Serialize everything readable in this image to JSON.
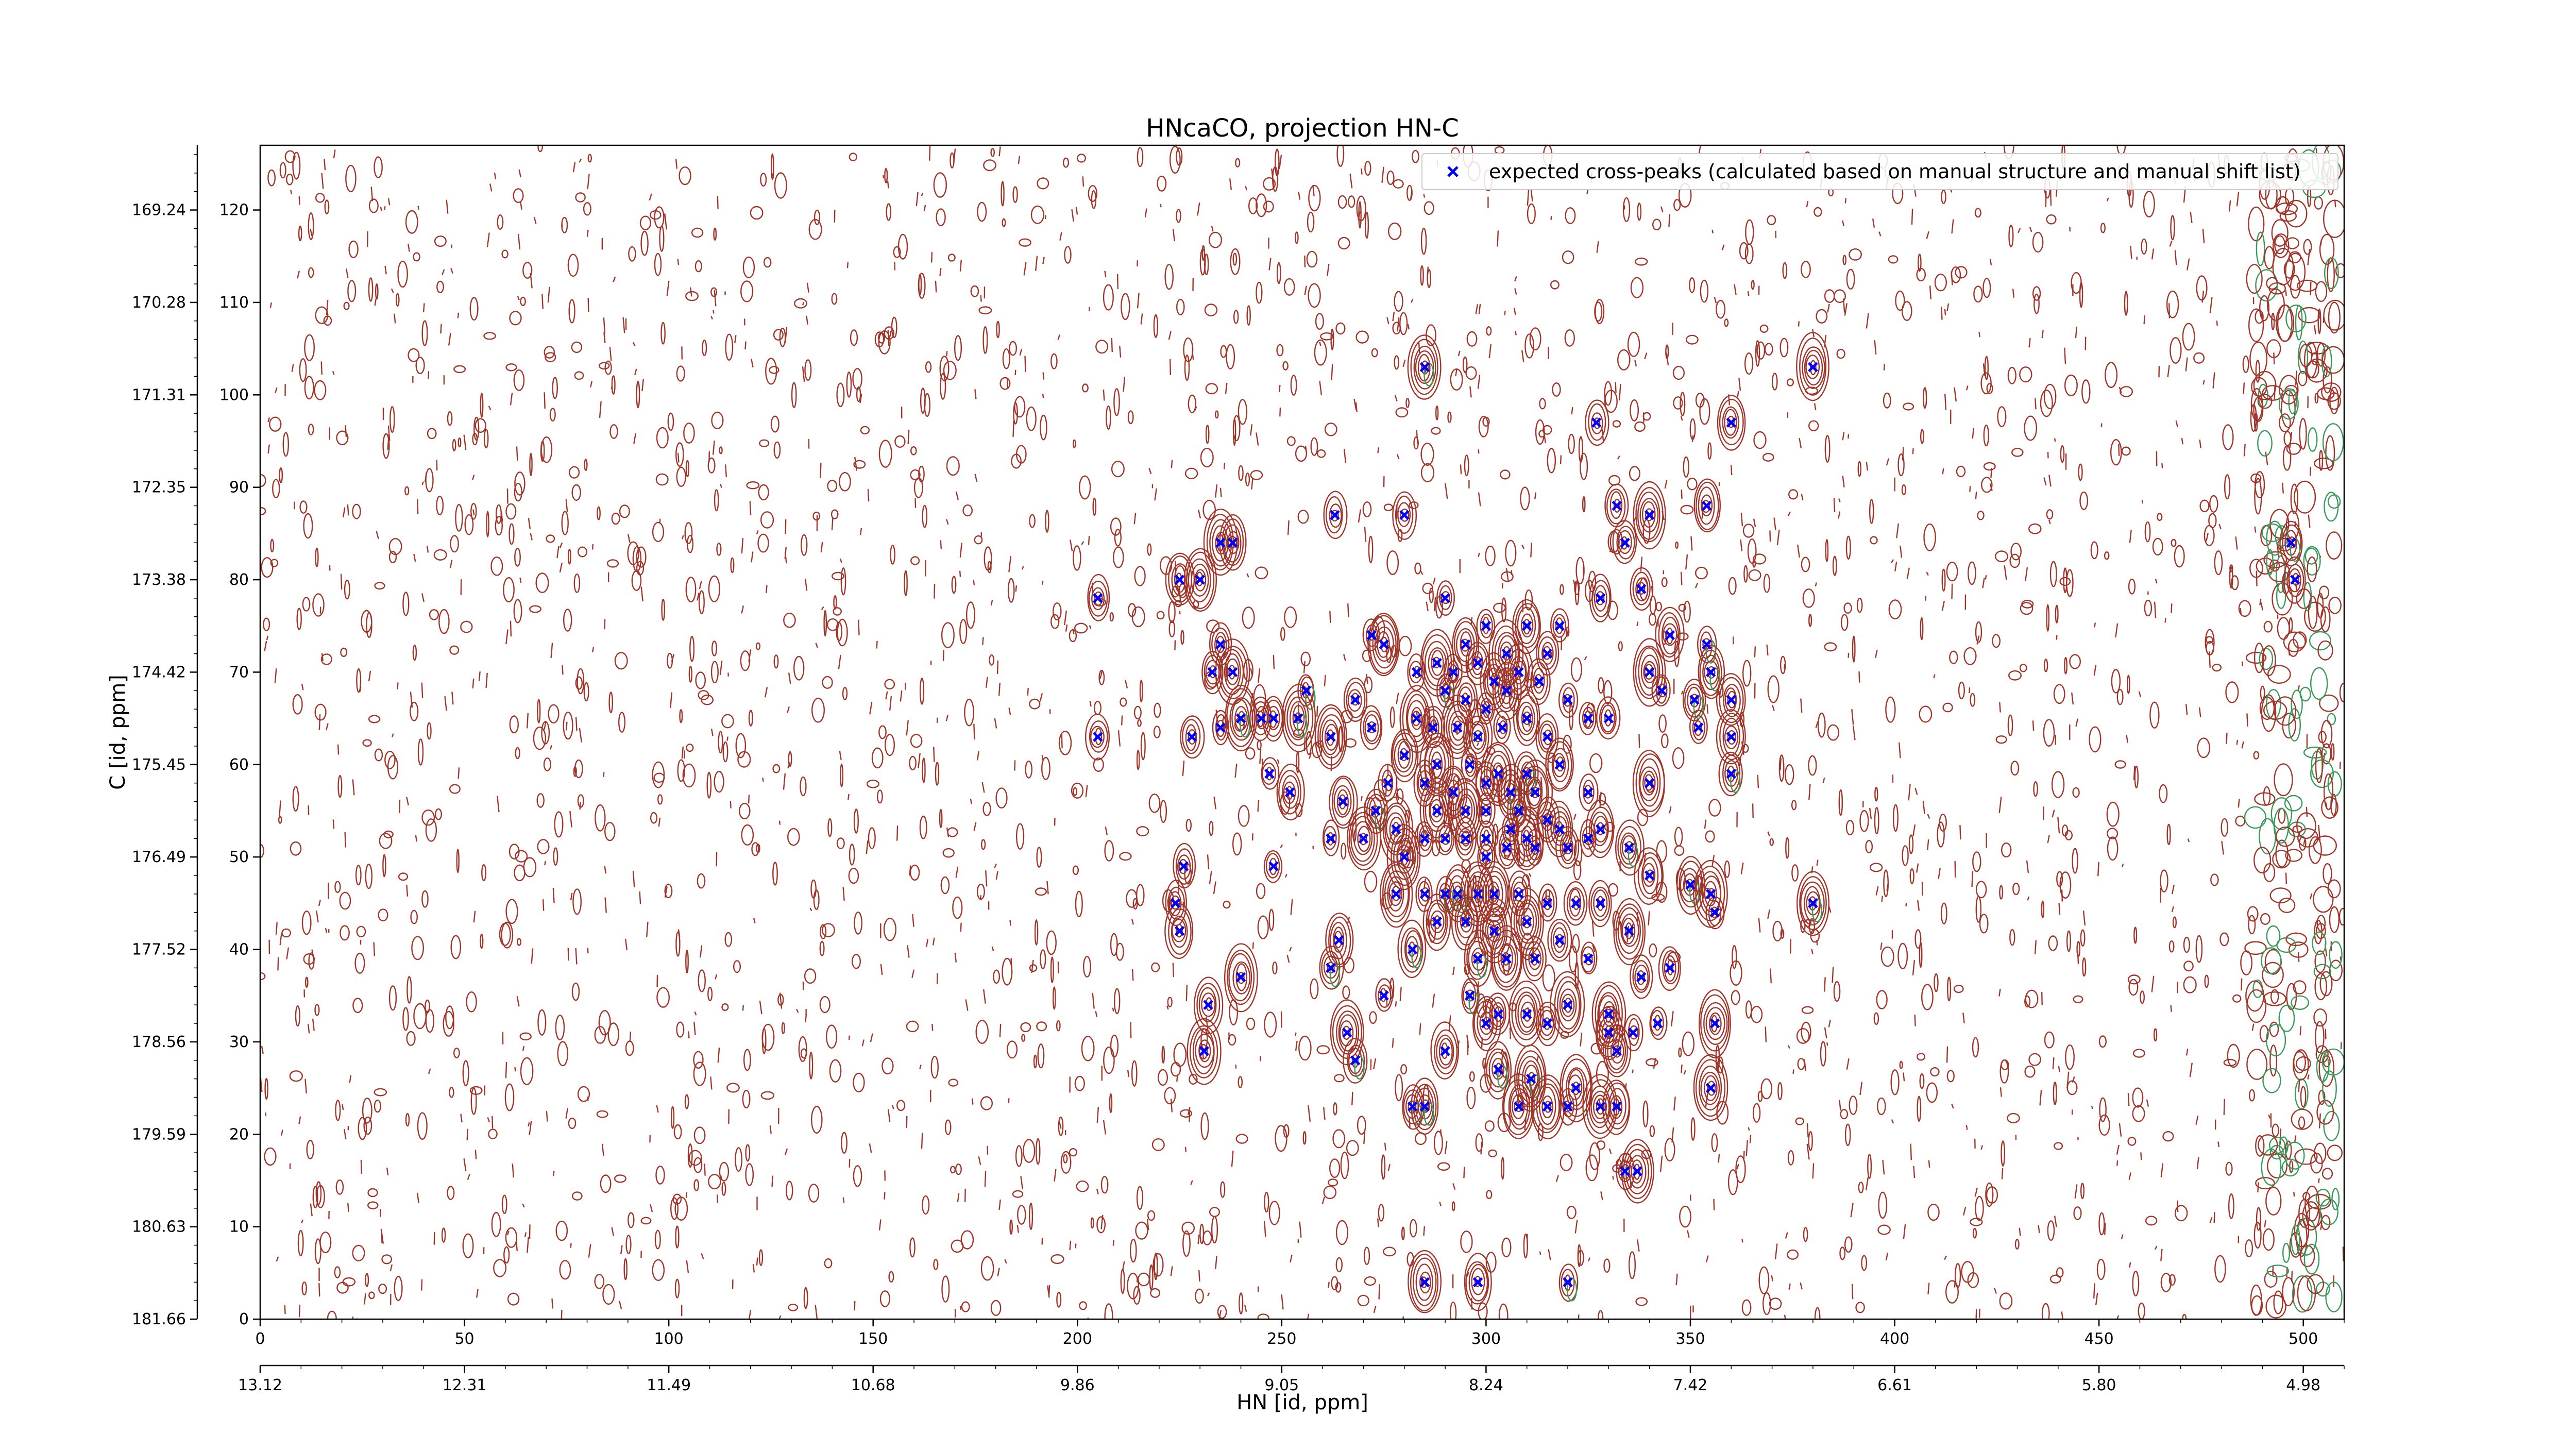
{
  "chart_data": {
    "type": "scatter",
    "title": "HNcaCO, projection HN-C",
    "xlabel": "HN [id, ppm]",
    "ylabel": "C [id, ppm]",
    "x_index_range": [
      0,
      510
    ],
    "y_index_range": [
      0,
      127
    ],
    "x_index_ticks": [
      "0",
      "50",
      "100",
      "150",
      "200",
      "250",
      "300",
      "350",
      "400",
      "450",
      "500"
    ],
    "x_ppm_ticks": [
      "13.12",
      "12.31",
      "11.49",
      "10.68",
      "9.86",
      "9.05",
      "8.24",
      "7.42",
      "6.61",
      "5.80",
      "4.98"
    ],
    "y_index_ticks": [
      "0",
      "10",
      "20",
      "30",
      "40",
      "50",
      "60",
      "70",
      "80",
      "90",
      "100",
      "110",
      "120"
    ],
    "y_ppm_ticks": [
      "181.66",
      "180.63",
      "179.59",
      "178.56",
      "177.52",
      "176.49",
      "175.45",
      "174.42",
      "173.38",
      "172.35",
      "171.31",
      "170.28",
      "169.24"
    ],
    "grid": false,
    "legend_position": "upper right",
    "colors": {
      "positive_contours": "#a0352a",
      "negative_contours": "#3a9a5a",
      "peaks": "#0000ff"
    },
    "series": [
      {
        "name": "expected cross-peaks (calculated based on manual structure and manual shift list)",
        "marker": "x",
        "color": "#0000ff",
        "points": [
          [
            285,
            103
          ],
          [
            380,
            103
          ],
          [
            327,
            97
          ],
          [
            360,
            97
          ],
          [
            354,
            88
          ],
          [
            332,
            88
          ],
          [
            263,
            87
          ],
          [
            280,
            87
          ],
          [
            340,
            87
          ],
          [
            235,
            84
          ],
          [
            238,
            84
          ],
          [
            334,
            84
          ],
          [
            225,
            80
          ],
          [
            230,
            80
          ],
          [
            205,
            78
          ],
          [
            338,
            79
          ],
          [
            290,
            78
          ],
          [
            328,
            78
          ],
          [
            272,
            74
          ],
          [
            275,
            73
          ],
          [
            295,
            73
          ],
          [
            300,
            75
          ],
          [
            305,
            72
          ],
          [
            310,
            75
          ],
          [
            288,
            71
          ],
          [
            298,
            71
          ],
          [
            315,
            72
          ],
          [
            318,
            75
          ],
          [
            345,
            74
          ],
          [
            235,
            73
          ],
          [
            354,
            73
          ],
          [
            233,
            70
          ],
          [
            238,
            70
          ],
          [
            283,
            70
          ],
          [
            292,
            70
          ],
          [
            302,
            69
          ],
          [
            308,
            70
          ],
          [
            313,
            69
          ],
          [
            320,
            67
          ],
          [
            340,
            70
          ],
          [
            355,
            70
          ],
          [
            343,
            68
          ],
          [
            256,
            68
          ],
          [
            268,
            67
          ],
          [
            290,
            68
          ],
          [
            295,
            67
          ],
          [
            300,
            66
          ],
          [
            305,
            68
          ],
          [
            351,
            67
          ],
          [
            360,
            67
          ],
          [
            205,
            63
          ],
          [
            228,
            63
          ],
          [
            235,
            64
          ],
          [
            240,
            65
          ],
          [
            245,
            65
          ],
          [
            248,
            65
          ],
          [
            254,
            65
          ],
          [
            262,
            63
          ],
          [
            272,
            64
          ],
          [
            283,
            65
          ],
          [
            287,
            64
          ],
          [
            293,
            64
          ],
          [
            298,
            63
          ],
          [
            304,
            64
          ],
          [
            310,
            65
          ],
          [
            315,
            63
          ],
          [
            325,
            65
          ],
          [
            330,
            65
          ],
          [
            352,
            64
          ],
          [
            360,
            63
          ],
          [
            280,
            61
          ],
          [
            288,
            60
          ],
          [
            296,
            60
          ],
          [
            303,
            59
          ],
          [
            310,
            59
          ],
          [
            318,
            60
          ],
          [
            247,
            59
          ],
          [
            276,
            58
          ],
          [
            285,
            58
          ],
          [
            292,
            57
          ],
          [
            300,
            58
          ],
          [
            306,
            57
          ],
          [
            312,
            57
          ],
          [
            325,
            57
          ],
          [
            340,
            58
          ],
          [
            360,
            59
          ],
          [
            252,
            57
          ],
          [
            265,
            56
          ],
          [
            273,
            55
          ],
          [
            288,
            55
          ],
          [
            295,
            55
          ],
          [
            300,
            55
          ],
          [
            308,
            55
          ],
          [
            315,
            54
          ],
          [
            278,
            53
          ],
          [
            285,
            52
          ],
          [
            290,
            52
          ],
          [
            295,
            52
          ],
          [
            300,
            52
          ],
          [
            306,
            53
          ],
          [
            310,
            52
          ],
          [
            318,
            53
          ],
          [
            325,
            52
          ],
          [
            328,
            53
          ],
          [
            262,
            52
          ],
          [
            270,
            52
          ],
          [
            280,
            50
          ],
          [
            300,
            50
          ],
          [
            305,
            51
          ],
          [
            312,
            51
          ],
          [
            320,
            51
          ],
          [
            335,
            51
          ],
          [
            340,
            48
          ],
          [
            350,
            47
          ],
          [
            226,
            49
          ],
          [
            248,
            49
          ],
          [
            278,
            46
          ],
          [
            285,
            46
          ],
          [
            290,
            46
          ],
          [
            293,
            46
          ],
          [
            298,
            46
          ],
          [
            302,
            46
          ],
          [
            308,
            46
          ],
          [
            315,
            45
          ],
          [
            322,
            45
          ],
          [
            328,
            45
          ],
          [
            355,
            46
          ],
          [
            380,
            45
          ],
          [
            224,
            45
          ],
          [
            225,
            42
          ],
          [
            356,
            44
          ],
          [
            288,
            43
          ],
          [
            295,
            43
          ],
          [
            302,
            42
          ],
          [
            310,
            43
          ],
          [
            318,
            41
          ],
          [
            335,
            42
          ],
          [
            282,
            40
          ],
          [
            298,
            39
          ],
          [
            305,
            39
          ],
          [
            312,
            39
          ],
          [
            325,
            39
          ],
          [
            264,
            41
          ],
          [
            262,
            38
          ],
          [
            232,
            34
          ],
          [
            240,
            37
          ],
          [
            275,
            35
          ],
          [
            296,
            35
          ],
          [
            303,
            33
          ],
          [
            310,
            33
          ],
          [
            320,
            34
          ],
          [
            330,
            33
          ],
          [
            338,
            37
          ],
          [
            345,
            38
          ],
          [
            266,
            31
          ],
          [
            300,
            32
          ],
          [
            315,
            32
          ],
          [
            330,
            31
          ],
          [
            336,
            31
          ],
          [
            342,
            32
          ],
          [
            268,
            28
          ],
          [
            356,
            32
          ],
          [
            290,
            29
          ],
          [
            303,
            27
          ],
          [
            311,
            26
          ],
          [
            322,
            25
          ],
          [
            332,
            29
          ],
          [
            231,
            29
          ],
          [
            355,
            25
          ],
          [
            282,
            23
          ],
          [
            285,
            23
          ],
          [
            308,
            23
          ],
          [
            315,
            23
          ],
          [
            320,
            23
          ],
          [
            328,
            23
          ],
          [
            332,
            23
          ],
          [
            334,
            16
          ],
          [
            337,
            16
          ],
          [
            285,
            4
          ],
          [
            298,
            4
          ],
          [
            320,
            4
          ],
          [
            497,
            84
          ],
          [
            498,
            80
          ]
        ]
      }
    ]
  }
}
